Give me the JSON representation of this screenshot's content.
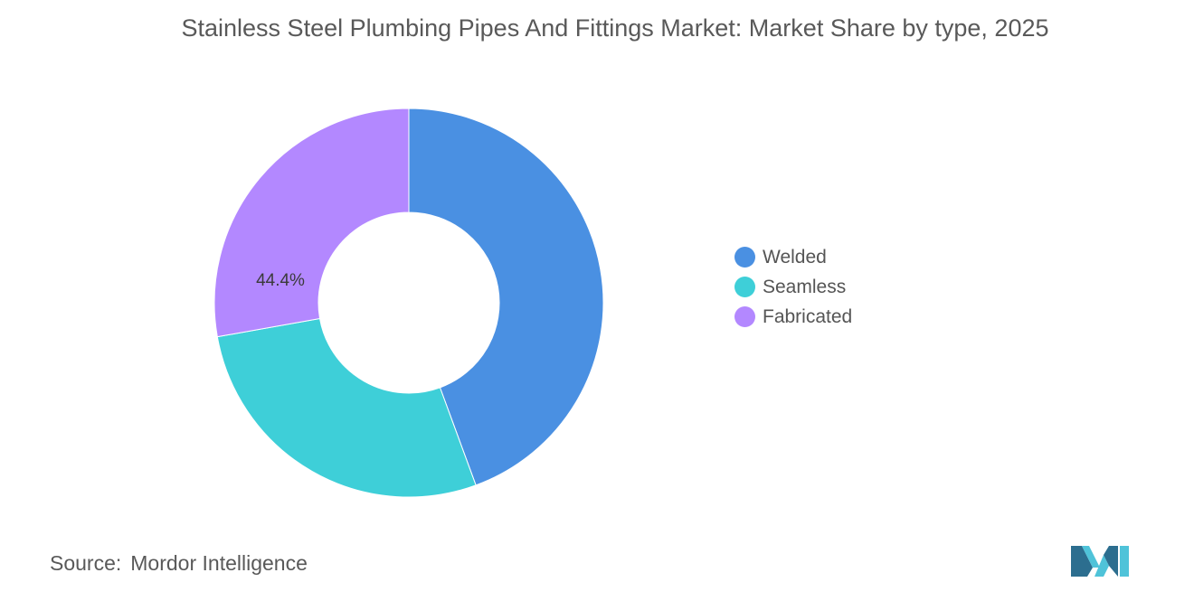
{
  "title": "Stainless Steel Plumbing Pipes And Fittings Market: Market Share by type, 2025",
  "chart_data": {
    "type": "pie",
    "variant": "donut",
    "categories": [
      "Welded",
      "Seamless",
      "Fabricated"
    ],
    "values": [
      44.4,
      27.8,
      27.8
    ],
    "colors": [
      "#4a90e2",
      "#3ecfd8",
      "#b388ff"
    ],
    "data_labels": [
      "44.4%",
      "",
      ""
    ],
    "legend_position": "right"
  },
  "legend": {
    "items": [
      {
        "label": "Welded",
        "color": "#4a90e2"
      },
      {
        "label": "Seamless",
        "color": "#3ecfd8"
      },
      {
        "label": "Fabricated",
        "color": "#b388ff"
      }
    ]
  },
  "source": {
    "key": "Source:",
    "value": "Mordor Intelligence"
  },
  "logo": {
    "icon": "mordor-intelligence-logo-icon",
    "colors": [
      "#2c6e8f",
      "#4fc3d9"
    ]
  }
}
